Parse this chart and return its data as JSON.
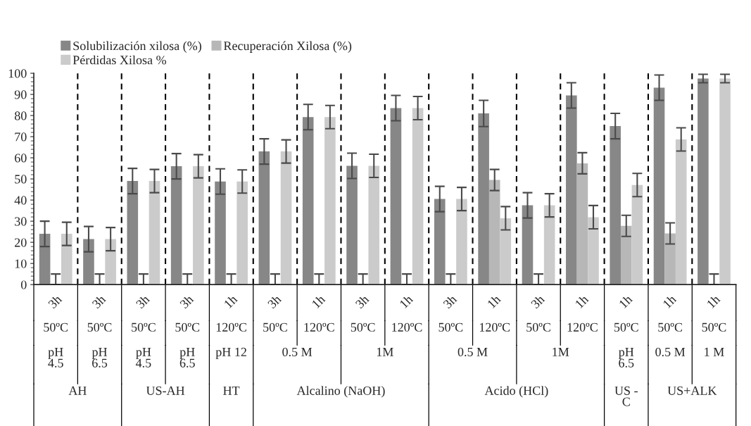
{
  "chart_data": {
    "type": "bar",
    "categories": [
      "3h",
      "3h",
      "3h",
      "3h",
      "1h",
      "3h",
      "1h",
      "3h",
      "1h",
      "3h",
      "1h",
      "3h",
      "1h",
      "1h",
      "1h",
      "1h"
    ],
    "series": [
      {
        "name": "Solubilización xilosa (%)",
        "color": "#878787",
        "values": [
          24,
          21.5,
          49,
          56,
          48.8,
          63,
          79.3,
          56.2,
          83.5,
          40.5,
          81,
          37.5,
          89.5,
          75,
          93.2,
          97.5
        ],
        "errors": [
          6,
          6,
          6,
          6,
          6,
          6,
          6,
          6,
          6,
          6,
          6.2,
          6,
          6,
          6,
          6,
          2
        ]
      },
      {
        "name": "Recuperación Xilosa (%)",
        "color": "#b7b7b7",
        "values": [
          0,
          0,
          0,
          0,
          0,
          0,
          0,
          0,
          0,
          0,
          49.5,
          0,
          57.4,
          27.8,
          24.2,
          0
        ],
        "errors": [
          [
            0,
            5
          ],
          [
            0,
            5
          ],
          [
            0,
            5
          ],
          [
            0,
            5
          ],
          [
            0,
            5
          ],
          [
            0,
            5
          ],
          [
            0,
            5
          ],
          [
            0,
            5
          ],
          [
            0,
            5
          ],
          [
            0,
            5
          ],
          5,
          [
            0,
            5
          ],
          5,
          5,
          5,
          [
            0,
            5
          ]
        ]
      },
      {
        "name": "Pérdidas Xilosa %",
        "color": "#cbcbcb",
        "values": [
          24,
          21.5,
          49,
          56,
          48.8,
          63,
          79.3,
          56.2,
          83.5,
          40.5,
          31.4,
          37.5,
          31.9,
          47.1,
          68.7,
          97.5
        ],
        "errors": [
          5.5,
          5.5,
          5.5,
          5.5,
          5.5,
          5.5,
          5.5,
          5.5,
          5.5,
          5.5,
          5.5,
          5.5,
          5.5,
          5.5,
          5.5,
          2
        ]
      }
    ],
    "ylim": [
      0,
      100
    ],
    "yticks": [
      0,
      10,
      20,
      30,
      40,
      50,
      60,
      70,
      80,
      90,
      100
    ],
    "grid": "x",
    "legend": "top left",
    "annotations": [
      "50ºC",
      "50ºC",
      "50ºC",
      "50ºC",
      "120ºC",
      "50ºC",
      "120ºC",
      "50ºC",
      "120ºC",
      "50ºC",
      "120ºC",
      "50ºC",
      "120ºC",
      "50ºC",
      "50ºC",
      "50ºC",
      "pH 4.5",
      "pH 6.5",
      "pH 4.5",
      "pH 6.5",
      "pH 12",
      "0.5 M",
      "1M",
      "0.5 M",
      "1M",
      "pH 6.5",
      "0.5 M",
      "1 M",
      "AH",
      "US-AH",
      "HT",
      "Alcalino (NaOH)",
      "Acido (HCl)",
      "US - C",
      "US+ALK"
    ]
  }
}
